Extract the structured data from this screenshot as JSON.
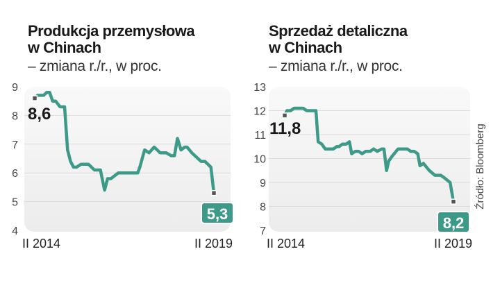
{
  "source": "Źródło: Bloomberg",
  "chart_data": [
    {
      "type": "line",
      "title": "Produkcja przemysłowa w Chinach",
      "title_line1": "Produkcja przemysłowa",
      "title_line2": "w Chinach",
      "subtitle": "– zmiana r./r., w proc.",
      "ylim": [
        4,
        9
      ],
      "yticks": [
        4,
        5,
        6,
        7,
        8,
        9
      ],
      "xtick_labels": [
        "II 2014",
        "II 2019"
      ],
      "grid": true,
      "start_label": "8,6",
      "end_label": "5,3",
      "line_color": "#3d9a88",
      "x": [
        0,
        1,
        3,
        4,
        5,
        6,
        7,
        8.5,
        10,
        11,
        12,
        13,
        14,
        15.5,
        18,
        20,
        22,
        23.4,
        24.4,
        25.5,
        28,
        34.5,
        35.2,
        36.8,
        38.3,
        40,
        42,
        44,
        45.7,
        46.8,
        47.8,
        49,
        50.3,
        51,
        52.6,
        55.7,
        57,
        59,
        60
      ],
      "y": [
        8.6,
        8.7,
        8.7,
        8.8,
        8.8,
        8.5,
        8.5,
        8.3,
        8.3,
        6.8,
        6.4,
        6.2,
        6.2,
        6.3,
        6.3,
        6.1,
        6.1,
        5.4,
        5.8,
        5.8,
        6.0,
        6.0,
        6.2,
        6.8,
        6.7,
        6.9,
        6.7,
        6.7,
        6.6,
        6.6,
        7.2,
        6.8,
        6.9,
        6.9,
        6.7,
        6.4,
        6.4,
        6.2,
        5.3
      ]
    },
    {
      "type": "line",
      "title": "Sprzedaż detaliczna w Chinach",
      "title_line1": "Sprzedaż detaliczna",
      "title_line2": "w Chinach",
      "subtitle": "– zmiana r./r., w proc.",
      "ylim": [
        7,
        13
      ],
      "yticks": [
        7,
        8,
        9,
        10,
        11,
        12,
        13
      ],
      "xtick_labels": [
        "II 2014",
        "II 2019"
      ],
      "grid": true,
      "start_label": "11,8",
      "end_label": "8,2",
      "line_color": "#3d9a88",
      "x": [
        0,
        0.8,
        2.1,
        3.3,
        6.6,
        7.8,
        11.1,
        11.9,
        13.2,
        14.4,
        17.3,
        18.5,
        19.3,
        20.5,
        21.8,
        23,
        23.8,
        25.1,
        26.3,
        27.5,
        28.8,
        30.4,
        31.6,
        32.9,
        34.5,
        35.3,
        36.2,
        37,
        38.2,
        40.3,
        43.6,
        44.8,
        46,
        47.3,
        48.1,
        49.3,
        51.4,
        53.4,
        55.5,
        56.7,
        58.8,
        60
      ],
      "y": [
        11.8,
        12.0,
        12.0,
        12.1,
        12.1,
        12.0,
        12.0,
        10.7,
        10.6,
        10.4,
        10.4,
        10.5,
        10.5,
        10.6,
        10.6,
        10.7,
        10.2,
        10.3,
        10.3,
        10.2,
        10.3,
        10.3,
        10.4,
        10.3,
        10.4,
        10.4,
        9.5,
        9.9,
        10.1,
        10.4,
        10.4,
        10.3,
        10.3,
        10.2,
        9.7,
        9.8,
        9.5,
        9.3,
        9.3,
        9.2,
        9.0,
        8.2
      ]
    }
  ]
}
